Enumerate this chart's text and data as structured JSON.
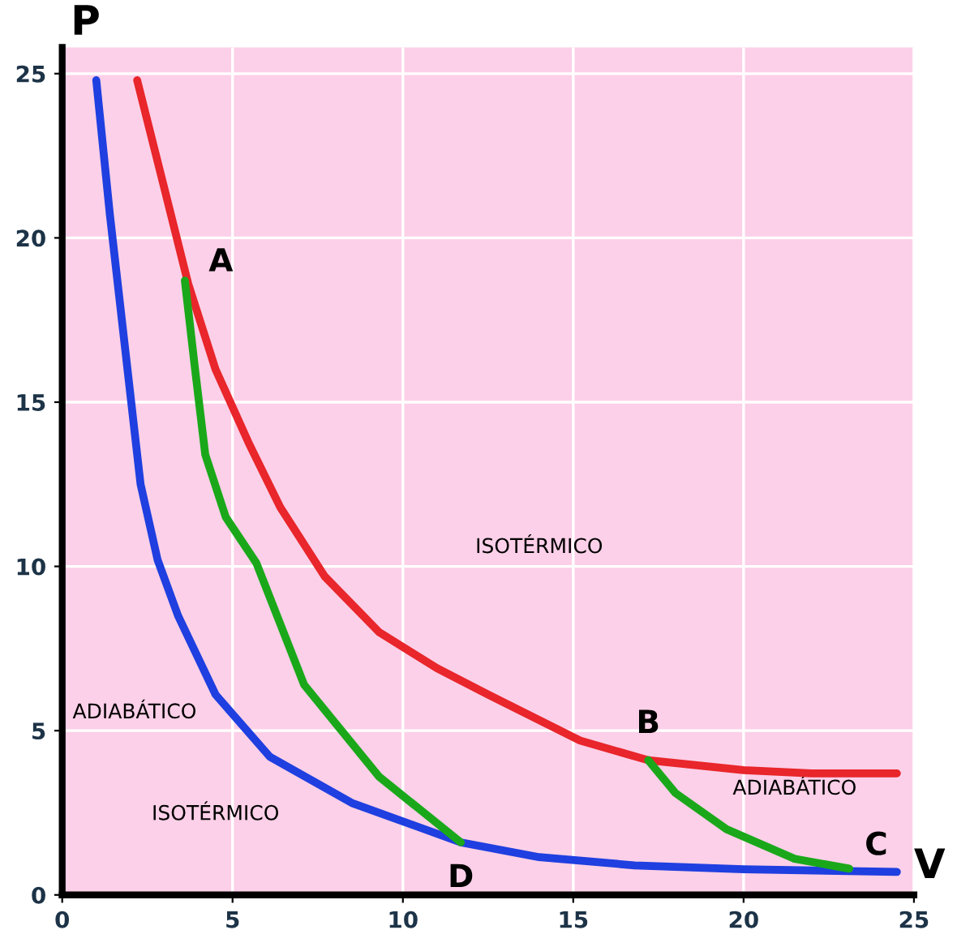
{
  "chart_data": {
    "type": "line",
    "xlabel": "V",
    "ylabel": "P",
    "xlim": [
      0,
      25
    ],
    "ylim": [
      0,
      25.8
    ],
    "xticks": [
      0,
      5,
      10,
      15,
      20,
      25
    ],
    "yticks": [
      0,
      5,
      10,
      15,
      20,
      25
    ],
    "grid": true,
    "legend": false,
    "marker": "none",
    "line_style": "solid",
    "series": [
      {
        "color": "#e8262b",
        "x": [
          2.2,
          3,
          3.7,
          4.5,
          5.5,
          6.4,
          7.7,
          9.3,
          11,
          12.5,
          15.2,
          17.2,
          20,
          22,
          24.5
        ],
        "values": [
          24.8,
          21.5,
          18.6,
          16,
          13.7,
          11.8,
          9.7,
          8.0,
          6.9,
          6.1,
          4.7,
          4.1,
          3.8,
          3.7,
          3.7
        ]
      },
      {
        "color": "#1f3fe0",
        "x": [
          1,
          1.4,
          1.85,
          2.3,
          2.8,
          3.4,
          4.5,
          6.1,
          8.5,
          11.7,
          14,
          16.8,
          20,
          24.5
        ],
        "values": [
          24.8,
          20.7,
          16.6,
          12.5,
          10.2,
          8.5,
          6.1,
          4.2,
          2.8,
          1.6,
          1.15,
          0.9,
          0.78,
          0.7
        ]
      },
      {
        "color": "#1aa81a",
        "x": [
          3.6,
          3.9,
          4.2,
          4.8,
          5.7,
          7.1,
          9.3,
          11.7
        ],
        "values": [
          18.7,
          16,
          13.4,
          11.5,
          10.1,
          6.4,
          3.6,
          1.6
        ]
      },
      {
        "color": "#1aa81a",
        "x": [
          17.2,
          18.0,
          19.5,
          21.5,
          23.1
        ],
        "values": [
          4.1,
          3.1,
          2.0,
          1.1,
          0.8
        ]
      }
    ],
    "annotations": [
      {
        "text": "A",
        "x": 3.6,
        "y": 18.7
      },
      {
        "text": "B",
        "x": 17.2,
        "y": 4.1
      },
      {
        "text": "C",
        "x": 23.1,
        "y": 0.8
      },
      {
        "text": "D",
        "x": 11.7,
        "y": 1.6
      },
      "ISOTÉRMICO",
      "ADIABÁTICO",
      "ISOTÉRMICO",
      "ADIABÁTICO"
    ]
  }
}
